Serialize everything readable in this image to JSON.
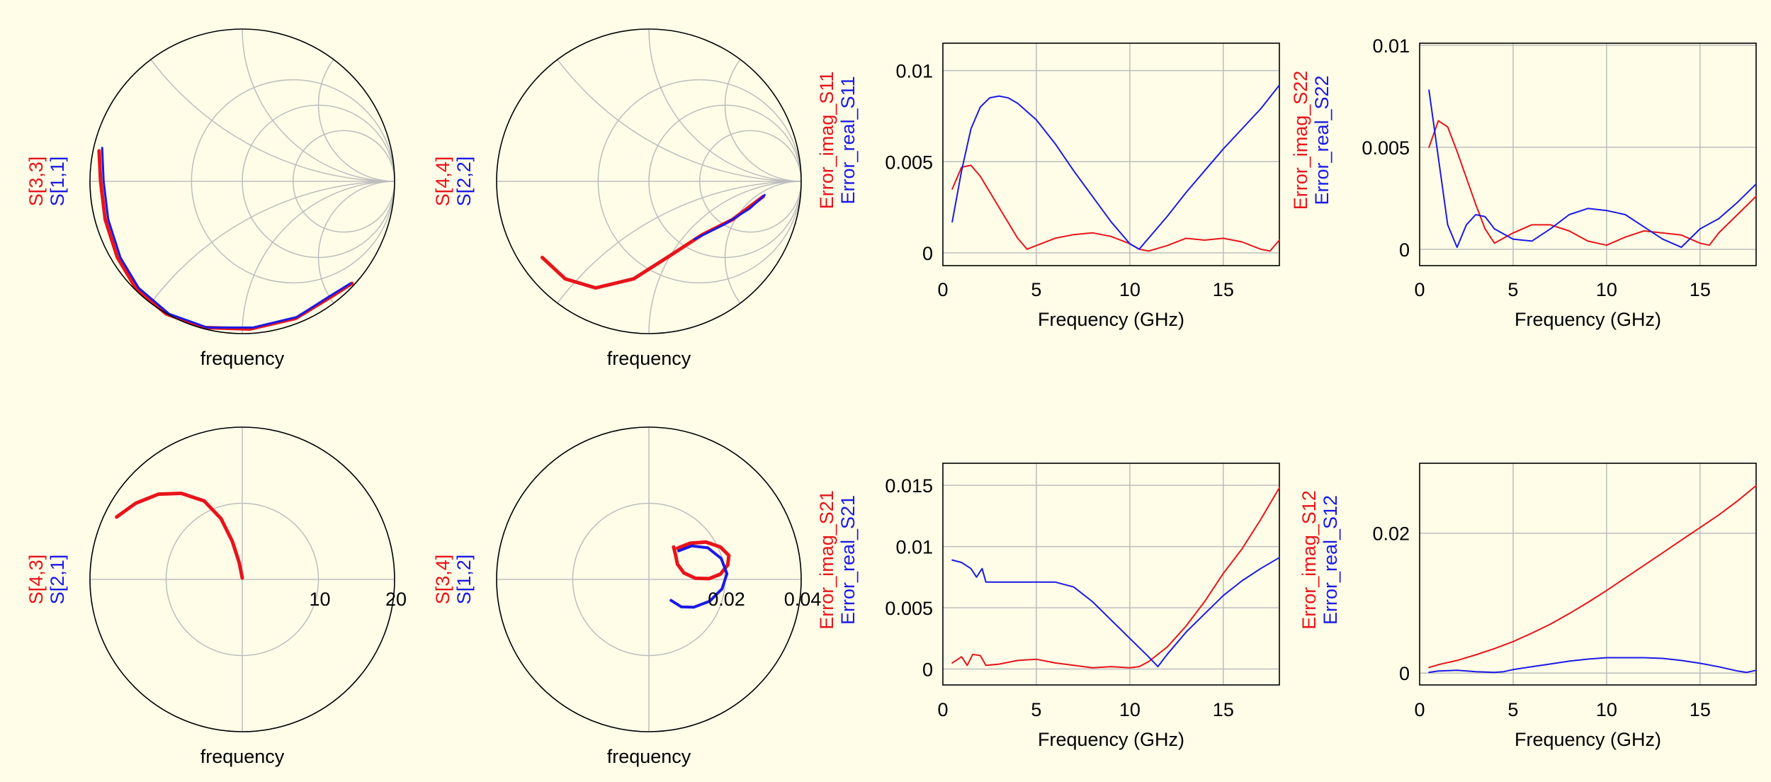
{
  "colors": {
    "red": "#E8141B",
    "blue": "#1A1AE6",
    "grid": "#BDBDBD",
    "background": "#FFFDE8"
  },
  "chart_data": [
    {
      "type": "smith",
      "xlabel": "frequency",
      "series": [
        {
          "name": "S[3,3]",
          "color": "red",
          "points": [
            [
              -0.94,
              0.2
            ],
            [
              -0.93,
              0.0
            ],
            [
              -0.9,
              -0.25
            ],
            [
              -0.82,
              -0.5
            ],
            [
              -0.7,
              -0.7
            ],
            [
              -0.5,
              -0.87
            ],
            [
              -0.25,
              -0.96
            ],
            [
              0.05,
              -0.97
            ],
            [
              0.35,
              -0.9
            ],
            [
              0.58,
              -0.76
            ],
            [
              0.72,
              -0.67
            ]
          ]
        },
        {
          "name": "S[1,1]",
          "color": "blue",
          "points": [
            [
              -0.92,
              0.22
            ],
            [
              -0.91,
              0.0
            ],
            [
              -0.88,
              -0.25
            ],
            [
              -0.8,
              -0.5
            ],
            [
              -0.68,
              -0.7
            ],
            [
              -0.48,
              -0.87
            ],
            [
              -0.23,
              -0.96
            ],
            [
              0.07,
              -0.96
            ],
            [
              0.36,
              -0.89
            ],
            [
              0.58,
              -0.75
            ],
            [
              0.71,
              -0.67
            ]
          ]
        }
      ]
    },
    {
      "type": "smith",
      "xlabel": "frequency",
      "series": [
        {
          "name": "S[4,4]",
          "color": "red",
          "points": [
            [
              -0.7,
              -0.5
            ],
            [
              -0.55,
              -0.64
            ],
            [
              -0.35,
              -0.7
            ],
            [
              -0.1,
              -0.64
            ],
            [
              0.12,
              -0.5
            ],
            [
              0.35,
              -0.35
            ],
            [
              0.55,
              -0.25
            ],
            [
              0.75,
              -0.1
            ]
          ]
        },
        {
          "name": "S[2,2]",
          "color": "blue",
          "points": [
            [
              0.3,
              -0.38
            ],
            [
              0.5,
              -0.28
            ],
            [
              0.66,
              -0.18
            ],
            [
              0.76,
              -0.09
            ]
          ]
        }
      ]
    },
    {
      "type": "line",
      "xlabel": "Frequency (GHz)",
      "xlim": [
        0,
        18
      ],
      "ylim": [
        -0.0007,
        0.0115
      ],
      "xticks": [
        0,
        5,
        10,
        15
      ],
      "yticks": [
        0,
        0.005,
        0.01
      ],
      "ytick_labels": [
        "0",
        "0.005",
        "0.01"
      ],
      "series": [
        {
          "name": "Error_imag_S11",
          "color": "red",
          "x": [
            0.5,
            1,
            1.5,
            2,
            3,
            4,
            4.5,
            5,
            6,
            7,
            8,
            9,
            10,
            10.5,
            11,
            12,
            13,
            14,
            15,
            16,
            17,
            17.5,
            18
          ],
          "y": [
            0.0035,
            0.0047,
            0.0048,
            0.0042,
            0.0025,
            0.0008,
            0.0002,
            0.0004,
            0.0008,
            0.001,
            0.0011,
            0.0009,
            0.0005,
            0.0002,
            0.0001,
            0.0004,
            0.0008,
            0.0007,
            0.0008,
            0.0006,
            0.0002,
            0.0001,
            0.0007
          ]
        },
        {
          "name": "Error_real_S11",
          "color": "blue",
          "x": [
            0.5,
            1,
            1.5,
            2,
            2.5,
            3,
            3.5,
            4,
            5,
            6,
            7,
            8,
            9,
            10,
            10.5,
            11,
            12,
            13,
            14,
            15,
            16,
            17,
            18
          ],
          "y": [
            0.0017,
            0.0045,
            0.0068,
            0.008,
            0.0085,
            0.0086,
            0.0085,
            0.0082,
            0.0073,
            0.006,
            0.0045,
            0.0031,
            0.0017,
            0.0005,
            0.0002,
            0.0008,
            0.002,
            0.0033,
            0.0045,
            0.0057,
            0.0068,
            0.0079,
            0.0092
          ]
        }
      ]
    },
    {
      "type": "line",
      "xlabel": "Frequency (GHz)",
      "xlim": [
        0,
        18
      ],
      "ylim": [
        -0.0008,
        0.0101
      ],
      "xticks": [
        0,
        5,
        10,
        15
      ],
      "yticks": [
        0,
        0.005,
        0.01
      ],
      "ytick_labels": [
        "0",
        "0.005",
        "0.01"
      ],
      "series": [
        {
          "name": "Error_imag_S22",
          "color": "red",
          "x": [
            0.5,
            1,
            1.5,
            2,
            2.5,
            3,
            3.5,
            4,
            5,
            6,
            7,
            8,
            9,
            10,
            11,
            12,
            13,
            14,
            15,
            15.5,
            16,
            17,
            18
          ],
          "y": [
            0.005,
            0.0063,
            0.006,
            0.0048,
            0.0035,
            0.0022,
            0.001,
            0.0003,
            0.0008,
            0.0012,
            0.0012,
            0.0009,
            0.0004,
            0.0002,
            0.0006,
            0.0009,
            0.0008,
            0.0007,
            0.0003,
            0.0002,
            0.0008,
            0.0017,
            0.0026
          ]
        },
        {
          "name": "Error_real_S22",
          "color": "blue",
          "x": [
            0.5,
            1,
            1.5,
            2,
            2.5,
            3,
            3.5,
            4,
            5,
            6,
            7,
            8,
            9,
            10,
            11,
            12,
            13,
            14,
            15,
            16,
            17,
            18
          ],
          "y": [
            0.0078,
            0.0045,
            0.0012,
            0.0001,
            0.0012,
            0.0017,
            0.0016,
            0.001,
            0.0005,
            0.0004,
            0.001,
            0.0017,
            0.002,
            0.0019,
            0.0017,
            0.0011,
            0.0005,
            0.0001,
            0.001,
            0.0015,
            0.0023,
            0.0032
          ]
        }
      ]
    },
    {
      "type": "polar",
      "xlabel": "frequency",
      "rmax": 20,
      "rticks": [
        10,
        20
      ],
      "rtick_labels": [
        "10",
        "20"
      ],
      "series": [
        {
          "name": "S[4,3]",
          "color": "red",
          "points": [
            [
              -16.5,
              8.2
            ],
            [
              -14,
              10
            ],
            [
              -11,
              11.2
            ],
            [
              -8,
              11.3
            ],
            [
              -5,
              10.3
            ],
            [
              -2.8,
              8
            ],
            [
              -1.3,
              5
            ],
            [
              -0.4,
              2.2
            ],
            [
              0,
              0.2
            ]
          ]
        },
        {
          "name": "S[2,1]",
          "color": "blue",
          "points": []
        }
      ]
    },
    {
      "type": "polar",
      "xlabel": "frequency",
      "rmax": 0.04,
      "rticks": [
        0.02,
        0.04
      ],
      "rtick_labels": [
        "0.02",
        "0.04"
      ],
      "series": [
        {
          "name": "S[3,4]",
          "color": "red",
          "points": [
            [
              0.0065,
              0.0085
            ],
            [
              0.007,
              0.0065
            ],
            [
              0.0075,
              0.004
            ],
            [
              0.0092,
              0.0017
            ],
            [
              0.0122,
              0.0003
            ],
            [
              0.0158,
              0.0002
            ],
            [
              0.0188,
              0.0014
            ],
            [
              0.0207,
              0.0038
            ],
            [
              0.021,
              0.0063
            ],
            [
              0.0188,
              0.0085
            ],
            [
              0.015,
              0.0098
            ],
            [
              0.0108,
              0.0095
            ],
            [
              0.0075,
              0.0082
            ]
          ]
        },
        {
          "name": "S[1,2]",
          "color": "blue",
          "points": [
            [
              0.0058,
              -0.0055
            ],
            [
              0.0085,
              -0.0072
            ],
            [
              0.0118,
              -0.0073
            ],
            [
              0.016,
              -0.0057
            ],
            [
              0.0192,
              -0.0025
            ],
            [
              0.0205,
              0.0015
            ],
            [
              0.019,
              0.0055
            ],
            [
              0.0155,
              0.0083
            ],
            [
              0.0112,
              0.0088
            ],
            [
              0.0078,
              0.0075
            ]
          ]
        }
      ]
    },
    {
      "type": "line",
      "xlabel": "Frequency (GHz)",
      "xlim": [
        0,
        18
      ],
      "ylim": [
        -0.0013,
        0.0168
      ],
      "xticks": [
        0,
        5,
        10,
        15
      ],
      "yticks": [
        0,
        0.005,
        0.01,
        0.015
      ],
      "ytick_labels": [
        "0",
        "0.005",
        "0.01",
        "0.015"
      ],
      "series": [
        {
          "name": "Error_imag_S21",
          "color": "red",
          "x": [
            0.5,
            1,
            1.3,
            1.6,
            2,
            2.3,
            3,
            4,
            5,
            6,
            7,
            8,
            9,
            10,
            10.5,
            11,
            12,
            13,
            14,
            15,
            16,
            17,
            18
          ],
          "y": [
            0.0005,
            0.001,
            0.0003,
            0.0012,
            0.0011,
            0.0003,
            0.0004,
            0.0007,
            0.0008,
            0.0005,
            0.0003,
            0.0001,
            0.0002,
            0.0001,
            0.0002,
            0.0006,
            0.0018,
            0.0035,
            0.0055,
            0.0078,
            0.0098,
            0.0122,
            0.0148
          ]
        },
        {
          "name": "Error_real_S21",
          "color": "blue",
          "x": [
            0.5,
            1,
            1.5,
            1.8,
            2.1,
            2.3,
            3,
            4,
            5,
            6,
            7,
            8,
            9,
            10,
            11,
            11.5,
            12,
            13,
            14,
            15,
            16,
            17,
            18
          ],
          "y": [
            0.0089,
            0.0087,
            0.0082,
            0.0075,
            0.0082,
            0.0071,
            0.0071,
            0.0071,
            0.0071,
            0.0071,
            0.0067,
            0.0055,
            0.004,
            0.0025,
            0.001,
            0.0002,
            0.0012,
            0.003,
            0.0045,
            0.006,
            0.0072,
            0.0082,
            0.0091
          ]
        }
      ]
    },
    {
      "type": "line",
      "xlabel": "Frequency (GHz)",
      "xlim": [
        0,
        18
      ],
      "ylim": [
        -0.0017,
        0.03
      ],
      "xticks": [
        0,
        5,
        10,
        15
      ],
      "yticks": [
        0,
        0.02
      ],
      "ytick_labels": [
        "0",
        "0.02"
      ],
      "series": [
        {
          "name": "Error_imag_S12",
          "color": "red",
          "x": [
            0.5,
            1,
            2,
            3,
            4,
            5,
            6,
            7,
            8,
            9,
            10,
            11,
            12,
            13,
            14,
            15,
            16,
            17,
            18
          ],
          "y": [
            0.0008,
            0.0012,
            0.0018,
            0.0026,
            0.0035,
            0.0045,
            0.0057,
            0.007,
            0.0085,
            0.0101,
            0.0118,
            0.0136,
            0.0154,
            0.0172,
            0.019,
            0.0208,
            0.0226,
            0.0246,
            0.0268
          ]
        },
        {
          "name": "Error_real_S12",
          "color": "blue",
          "x": [
            0.5,
            1,
            2,
            3,
            4,
            4.5,
            5,
            6,
            7,
            8,
            9,
            10,
            11,
            12,
            13,
            14,
            15,
            16,
            17,
            17.5,
            18
          ],
          "y": [
            0.0001,
            0.0003,
            0.0004,
            0.0002,
            0.0001,
            0.0002,
            0.0005,
            0.0009,
            0.0013,
            0.0017,
            0.002,
            0.0022,
            0.0022,
            0.0022,
            0.0021,
            0.0018,
            0.0014,
            0.0009,
            0.0003,
            0.0001,
            0.0004
          ]
        }
      ]
    }
  ]
}
